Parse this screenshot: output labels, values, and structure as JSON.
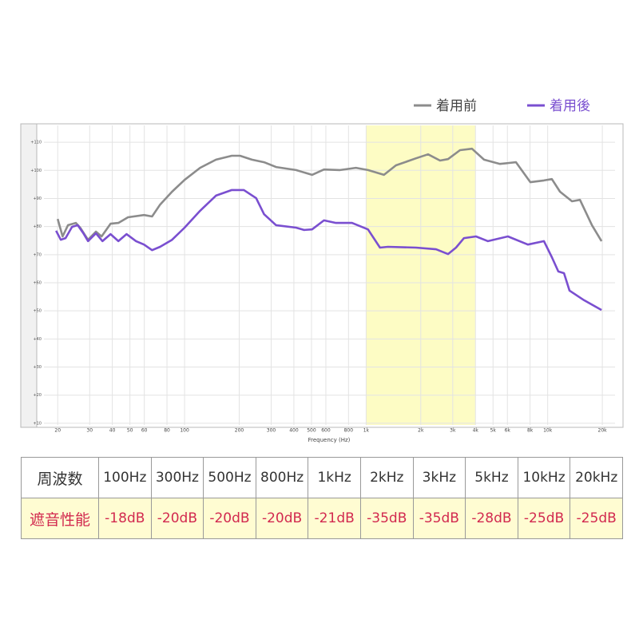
{
  "chart_data": {
    "type": "line",
    "xlog": true,
    "grid": true,
    "xlabel": "Frequency (Hz)",
    "xlim": [
      16.8,
      23500
    ],
    "ylim": [
      9.4,
      116
    ],
    "highlight": [
      1000,
      4000
    ],
    "highlight_color": "#fdfcc4",
    "xticks": [
      20,
      30,
      40,
      50,
      60,
      80,
      100,
      200,
      300,
      400,
      500,
      600,
      800,
      {
        "value": 1000,
        "label": "1k"
      },
      {
        "value": 2000,
        "label": "2k"
      },
      {
        "value": 3000,
        "label": "3k"
      },
      {
        "value": 4000,
        "label": "4k"
      },
      {
        "value": 5000,
        "label": "5k"
      },
      {
        "value": 6000,
        "label": "6k"
      },
      {
        "value": 8000,
        "label": "8k"
      },
      {
        "value": 10000,
        "label": "10k"
      },
      {
        "value": 20000,
        "label": "20k"
      }
    ],
    "yticks": [
      {
        "value": 10,
        "label": "+10"
      },
      {
        "value": 20,
        "label": "+20"
      },
      {
        "value": 30,
        "label": "+30"
      },
      {
        "value": 40,
        "label": "+40"
      },
      {
        "value": 50,
        "label": "+50"
      },
      {
        "value": 60,
        "label": "+60"
      },
      {
        "value": 70,
        "label": "+70"
      },
      {
        "value": 80,
        "label": "+80"
      },
      {
        "value": 90,
        "label": "+90"
      },
      {
        "value": 100,
        "label": "+100"
      },
      {
        "value": 110,
        "label": "+110"
      }
    ],
    "series": [
      {
        "name": "着用前",
        "color": "#8c8c8c",
        "x": [
          20,
          21.3,
          22.8,
          25.2,
          26.6,
          29.4,
          32.5,
          34.9,
          39.1,
          43.2,
          48.8,
          59.8,
          66.2,
          73.3,
          85.3,
          100,
          121.7,
          149,
          182,
          202,
          235,
          274,
          319,
          411,
          504,
          586,
          718,
          879,
          1024,
          1254,
          1459,
          1883,
          2193,
          2554,
          2825,
          3290,
          3830,
          4460,
          5460,
          6690,
          8030,
          9540,
          10550,
          11690,
          13610,
          15070,
          17540,
          19800
        ],
        "values": [
          82.7,
          76.5,
          80.5,
          81.3,
          79.6,
          75.3,
          78.2,
          76.5,
          81,
          81.3,
          83.3,
          84.1,
          83.6,
          87.8,
          92.4,
          96.6,
          100.9,
          103.8,
          105.2,
          105.2,
          103.8,
          102.9,
          101.2,
          100.1,
          98.4,
          100.3,
          100.1,
          100.9,
          100.1,
          98.4,
          101.8,
          104.3,
          105.7,
          103.5,
          104,
          107.2,
          107.7,
          103.8,
          102.3,
          102.9,
          95.8,
          96.4,
          96.9,
          92.4,
          89,
          89.5,
          80.5,
          74.8
        ]
      },
      {
        "name": "着用後",
        "color": "#7a4fd0",
        "x": [
          19.6,
          20.8,
          22.1,
          24,
          25.8,
          27.7,
          29.4,
          32.5,
          35.3,
          39.1,
          43.2,
          47.9,
          54,
          59.8,
          66.2,
          73.3,
          85.3,
          100,
          121.7,
          149,
          182,
          212,
          248,
          274,
          319,
          411,
          455,
          504,
          586,
          682,
          836,
          1024,
          1192,
          1319,
          1883,
          2427,
          2825,
          3126,
          3460,
          4030,
          4690,
          6040,
          7780,
          9540,
          10550,
          11450,
          12300,
          13190,
          15840,
          19800
        ],
        "values": [
          78.5,
          75.3,
          75.9,
          79.9,
          80.5,
          77.6,
          74.8,
          77.6,
          74.8,
          77.3,
          74.8,
          77.3,
          74.8,
          73.6,
          71.6,
          72.8,
          75.3,
          79.6,
          85.6,
          91,
          93,
          93,
          90.1,
          84.4,
          80.5,
          79.6,
          78.8,
          79,
          82.2,
          81.3,
          81.3,
          79,
          72.5,
          72.8,
          72.5,
          71.9,
          70.2,
          72.5,
          75.9,
          76.5,
          74.8,
          76.5,
          73.6,
          74.8,
          69.1,
          64,
          63.4,
          57.2,
          53.8,
          50.3
        ]
      }
    ]
  },
  "table": {
    "rows": [
      [
        "周波数",
        "100Hz",
        "300Hz",
        "500Hz",
        "800Hz",
        "1kHz",
        "2kHz",
        "3kHz",
        "5kHz",
        "10kHz",
        "20kHz"
      ],
      [
        "遮音性能",
        "-18dB",
        "-20dB",
        "-20dB",
        "-20dB",
        "-21dB",
        "-35dB",
        "-35dB",
        "-28dB",
        "-25dB",
        "-25dB"
      ]
    ]
  }
}
